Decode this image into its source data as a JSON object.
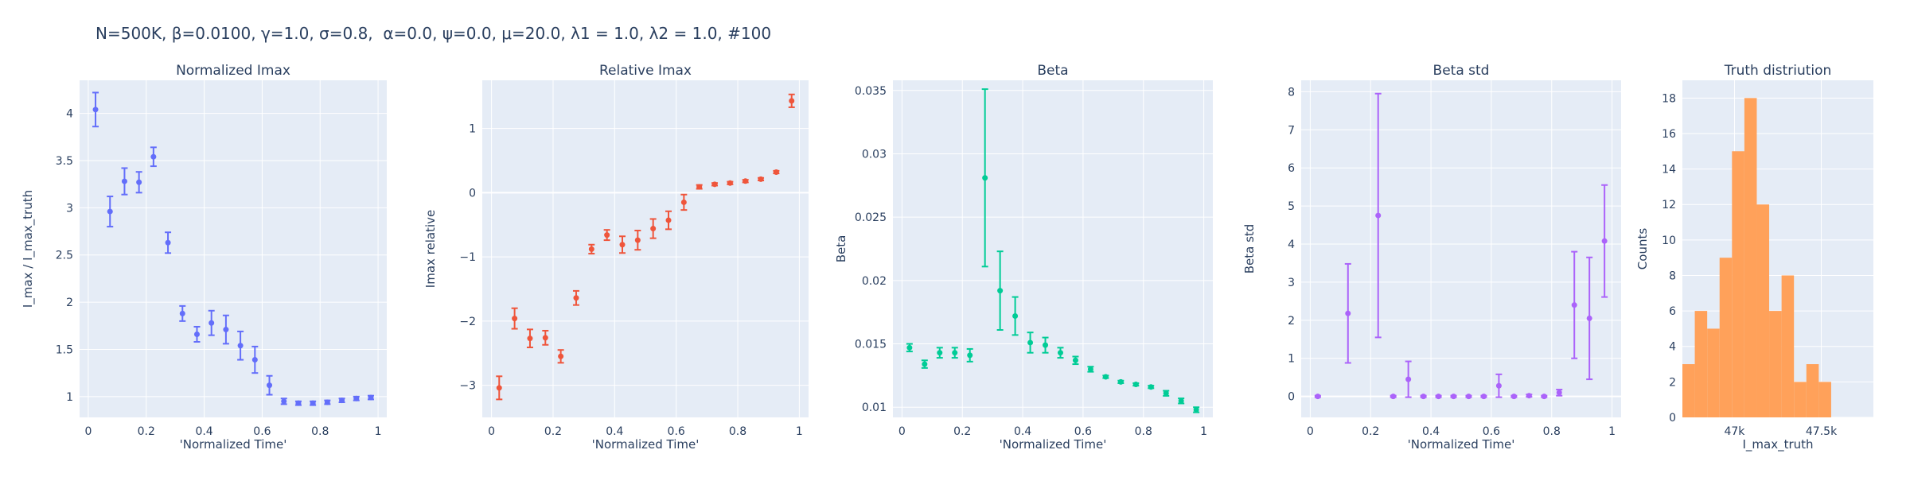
{
  "title": "N=500K, β=0.0100, γ=1.0, σ=0.8,  α=0.0, ψ=0.0, μ=20.0, λ1 = 1.0, λ2 = 1.0, #100",
  "chart_data": [
    {
      "type": "scatter",
      "title": "Normalized Imax",
      "xlabel": "'Normalized Time'",
      "ylabel": "I_max / I_max_truth",
      "color": "#636efa",
      "xlim": [
        -0.03,
        1.03
      ],
      "ylim": [
        0.78,
        4.35
      ],
      "xticks": [
        0,
        0.2,
        0.4,
        0.6,
        0.8,
        1
      ],
      "xtick_labels": [
        "0",
        "0.2",
        "0.4",
        "0.6",
        "0.8",
        "1"
      ],
      "yticks": [
        1,
        1.5,
        2,
        2.5,
        3,
        3.5,
        4
      ],
      "ytick_labels": [
        "1",
        "1.5",
        "2",
        "2.5",
        "3",
        "3.5",
        "4"
      ],
      "x": [
        0.025,
        0.075,
        0.125,
        0.175,
        0.225,
        0.275,
        0.325,
        0.375,
        0.425,
        0.475,
        0.525,
        0.575,
        0.625,
        0.675,
        0.725,
        0.775,
        0.825,
        0.875,
        0.925,
        0.975
      ],
      "y": [
        4.04,
        2.96,
        3.28,
        3.27,
        3.54,
        2.63,
        1.88,
        1.66,
        1.78,
        1.71,
        1.54,
        1.39,
        1.12,
        0.95,
        0.93,
        0.93,
        0.94,
        0.96,
        0.98,
        0.99
      ],
      "err": [
        0.18,
        0.16,
        0.14,
        0.11,
        0.1,
        0.11,
        0.08,
        0.08,
        0.13,
        0.15,
        0.15,
        0.14,
        0.1,
        0.03,
        0.02,
        0.02,
        0.02,
        0.02,
        0.02,
        0.02
      ]
    },
    {
      "type": "scatter",
      "title": "Relative Imax",
      "xlabel": "'Normalized Time'",
      "ylabel": "Imax relative",
      "color": "#ef553b",
      "xlim": [
        -0.03,
        1.03
      ],
      "ylim": [
        -3.5,
        1.75
      ],
      "xticks": [
        0,
        0.2,
        0.4,
        0.6,
        0.8,
        1
      ],
      "xtick_labels": [
        "0",
        "0.2",
        "0.4",
        "0.6",
        "0.8",
        "1"
      ],
      "yticks": [
        -3,
        -2,
        -1,
        0,
        1
      ],
      "ytick_labels": [
        "−3",
        "−2",
        "−1",
        "0",
        "1"
      ],
      "x": [
        0.025,
        0.075,
        0.125,
        0.175,
        0.225,
        0.275,
        0.325,
        0.375,
        0.425,
        0.475,
        0.525,
        0.575,
        0.625,
        0.675,
        0.725,
        0.775,
        0.825,
        0.875,
        0.925,
        0.975
      ],
      "y": [
        -3.04,
        -1.96,
        -2.27,
        -2.26,
        -2.55,
        -1.64,
        -0.88,
        -0.66,
        -0.81,
        -0.74,
        -0.56,
        -0.43,
        -0.15,
        0.09,
        0.13,
        0.15,
        0.18,
        0.21,
        0.32,
        1.43
      ],
      "err": [
        0.18,
        0.16,
        0.14,
        0.11,
        0.1,
        0.11,
        0.07,
        0.08,
        0.13,
        0.15,
        0.15,
        0.14,
        0.12,
        0.03,
        0.02,
        0.02,
        0.02,
        0.02,
        0.02,
        0.1
      ]
    },
    {
      "type": "scatter",
      "title": "Beta",
      "xlabel": "'Normalized Time'",
      "ylabel": "Beta",
      "color": "#00cc96",
      "xlim": [
        -0.03,
        1.03
      ],
      "ylim": [
        0.0092,
        0.0358
      ],
      "xticks": [
        0,
        0.2,
        0.4,
        0.6,
        0.8,
        1
      ],
      "xtick_labels": [
        "0",
        "0.2",
        "0.4",
        "0.6",
        "0.8",
        "1"
      ],
      "yticks": [
        0.01,
        0.015,
        0.02,
        0.025,
        0.03,
        0.035
      ],
      "ytick_labels": [
        "0.01",
        "0.015",
        "0.02",
        "0.025",
        "0.03",
        "0.035"
      ],
      "x": [
        0.025,
        0.075,
        0.125,
        0.175,
        0.225,
        0.275,
        0.325,
        0.375,
        0.425,
        0.475,
        0.525,
        0.575,
        0.625,
        0.675,
        0.725,
        0.775,
        0.825,
        0.875,
        0.925,
        0.975
      ],
      "y": [
        0.0147,
        0.0134,
        0.0143,
        0.0143,
        0.0141,
        0.0281,
        0.0192,
        0.0172,
        0.0151,
        0.0149,
        0.0143,
        0.0137,
        0.013,
        0.0124,
        0.012,
        0.0118,
        0.0116,
        0.0111,
        0.0105,
        0.0098
      ],
      "err": [
        0.0003,
        0.0003,
        0.0004,
        0.0004,
        0.0005,
        0.007,
        0.0031,
        0.0015,
        0.0008,
        0.0006,
        0.0004,
        0.0003,
        0.0002,
        0.0001,
        0.0001,
        0.0001,
        0.0001,
        0.0002,
        0.0002,
        0.0002
      ]
    },
    {
      "type": "scatter",
      "title": "Beta std",
      "xlabel": "'Normalized Time'",
      "ylabel": "Beta std",
      "color": "#ab63fa",
      "xlim": [
        -0.03,
        1.03
      ],
      "ylim": [
        -0.55,
        8.3
      ],
      "xticks": [
        0,
        0.2,
        0.4,
        0.6,
        0.8,
        1
      ],
      "xtick_labels": [
        "0",
        "0.2",
        "0.4",
        "0.6",
        "0.8",
        "1"
      ],
      "yticks": [
        0,
        1,
        2,
        3,
        4,
        5,
        6,
        7,
        8
      ],
      "ytick_labels": [
        "0",
        "1",
        "2",
        "3",
        "4",
        "5",
        "6",
        "7",
        "8"
      ],
      "x": [
        0.025,
        0.125,
        0.225,
        0.275,
        0.325,
        0.375,
        0.425,
        0.475,
        0.525,
        0.575,
        0.625,
        0.675,
        0.725,
        0.775,
        0.825,
        0.875,
        0.925,
        0.975
      ],
      "y": [
        0.0,
        2.18,
        4.75,
        0.0,
        0.45,
        0.0,
        0.0,
        0.0,
        0.0,
        0.0,
        0.28,
        0.0,
        0.02,
        0.0,
        0.1,
        2.4,
        2.05,
        4.08
      ],
      "err": [
        0.02,
        1.3,
        3.2,
        0.02,
        0.47,
        0.02,
        0.02,
        0.02,
        0.02,
        0.02,
        0.3,
        0.02,
        0.03,
        0.02,
        0.08,
        1.4,
        1.6,
        1.47
      ]
    },
    {
      "type": "bar",
      "title": "Truth distriution",
      "xlabel": "I_max_truth",
      "ylabel": "Counts",
      "color": "#ffa15a",
      "xlim": [
        46700,
        47800
      ],
      "ylim": [
        0,
        19
      ],
      "xticks": [
        47000,
        47500
      ],
      "xtick_labels": [
        "47k",
        "47.5k"
      ],
      "yticks": [
        0,
        2,
        4,
        6,
        8,
        10,
        12,
        14,
        16,
        18
      ],
      "ytick_labels": [
        "0",
        "2",
        "4",
        "6",
        "8",
        "10",
        "12",
        "14",
        "16",
        "18"
      ],
      "bin_start": 46700,
      "bin_width": 71.4,
      "values": [
        3,
        6,
        5,
        9,
        15,
        18,
        12,
        6,
        8,
        2,
        3,
        2
      ]
    }
  ]
}
